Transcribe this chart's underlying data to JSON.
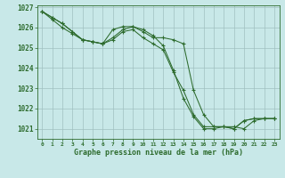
{
  "line1_x": [
    0,
    1,
    2,
    3,
    4,
    5,
    6,
    7,
    8,
    9,
    10,
    11,
    12,
    13,
    14,
    15,
    16,
    17,
    18,
    19,
    20,
    21,
    22,
    23
  ],
  "line1_y": [
    1026.8,
    1026.5,
    1026.2,
    1025.8,
    1025.4,
    1025.3,
    1025.2,
    1025.9,
    1026.05,
    1026.05,
    1025.8,
    1025.5,
    1025.5,
    1025.4,
    1025.2,
    1022.9,
    1021.7,
    1021.1,
    1021.1,
    1021.1,
    1021.0,
    1021.4,
    1021.5,
    1021.5
  ],
  "line2_x": [
    0,
    1,
    2,
    3,
    4,
    5,
    6,
    7,
    8,
    9,
    10,
    11,
    12,
    13,
    14,
    15,
    16,
    17,
    18,
    19,
    20,
    21,
    22,
    23
  ],
  "line2_y": [
    1026.8,
    1026.5,
    1026.2,
    1025.8,
    1025.4,
    1025.3,
    1025.2,
    1025.4,
    1025.8,
    1025.9,
    1025.5,
    1025.2,
    1024.9,
    1023.8,
    1022.9,
    1021.7,
    1021.1,
    1021.1,
    1021.1,
    1021.0,
    1021.4,
    1021.5,
    1021.5,
    1021.5
  ],
  "line3_x": [
    0,
    1,
    2,
    3,
    4,
    5,
    6,
    7,
    8,
    9,
    10,
    11,
    12,
    13,
    14,
    15,
    16,
    17,
    18,
    19,
    20,
    21,
    22,
    23
  ],
  "line3_y": [
    1026.8,
    1026.4,
    1026.0,
    1025.7,
    1025.4,
    1025.3,
    1025.2,
    1025.5,
    1025.9,
    1026.05,
    1025.9,
    1025.6,
    1025.1,
    1023.9,
    1022.5,
    1021.6,
    1021.0,
    1021.0,
    1021.1,
    1021.0,
    1021.4,
    1021.5,
    1021.5,
    1021.5
  ],
  "line_color": "#2d6b2d",
  "bg_color": "#c8e8e8",
  "grid_color": "#a0c0c0",
  "xlabel": "Graphe pression niveau de la mer (hPa)",
  "ylim": [
    1020.5,
    1027.1
  ],
  "xlim": [
    -0.5,
    23.5
  ],
  "yticks": [
    1021,
    1022,
    1023,
    1024,
    1025,
    1026,
    1027
  ],
  "xticks": [
    0,
    1,
    2,
    3,
    4,
    5,
    6,
    7,
    8,
    9,
    10,
    11,
    12,
    13,
    14,
    15,
    16,
    17,
    18,
    19,
    20,
    21,
    22,
    23
  ]
}
